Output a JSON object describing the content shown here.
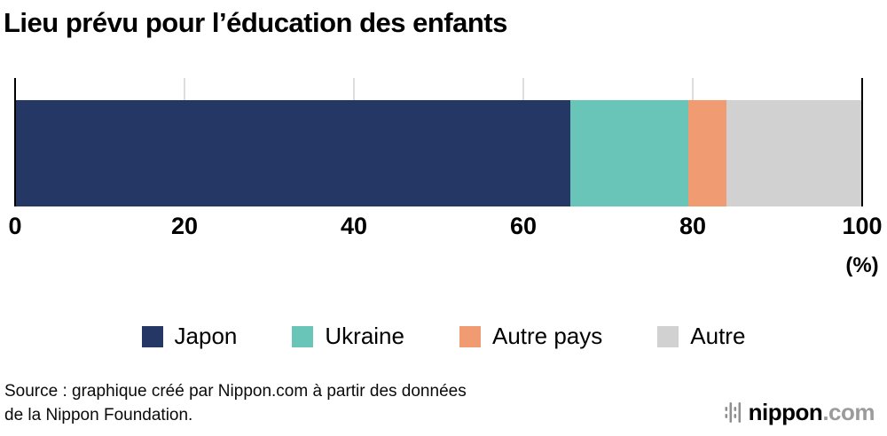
{
  "title": "Lieu prévu pour l’éducation des enfants",
  "chart_data": {
    "type": "bar",
    "orientation": "horizontal",
    "stacked": true,
    "title": "Lieu prévu pour l’éducation des enfants",
    "xlim": [
      0,
      100
    ],
    "x_ticks": [
      0,
      20,
      40,
      60,
      80,
      100
    ],
    "unit_label": "(%)",
    "grid": true,
    "legend_position": "bottom",
    "series": [
      {
        "name": "Japon",
        "value": 65.5,
        "color": "#253765"
      },
      {
        "name": "Ukraine",
        "value": 14.0,
        "color": "#6ac5b9"
      },
      {
        "name": "Autre pays",
        "value": 4.5,
        "color": "#f19b72"
      },
      {
        "name": "Autre",
        "value": 16.0,
        "color": "#d1d1d1"
      }
    ]
  },
  "source": {
    "line1": "Source : graphique créé par Nippon.com à partir des données",
    "line2": "de la Nippon Foundation."
  },
  "logo": {
    "name": "nippon",
    "tld": ".com"
  }
}
